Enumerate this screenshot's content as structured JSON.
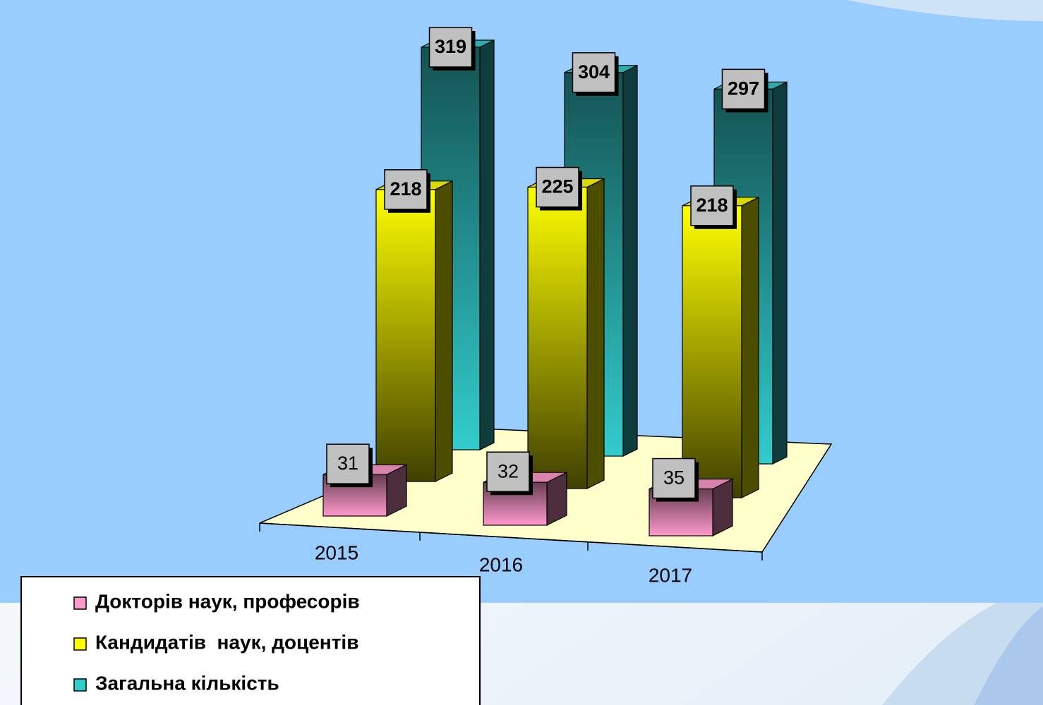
{
  "chart_data": {
    "type": "bar3d",
    "categories": [
      "2015",
      "2016",
      "2017"
    ],
    "series": [
      {
        "name": "Докторів наук, професорів",
        "color": "#ff99cc",
        "values": [
          31,
          32,
          35
        ]
      },
      {
        "name": "Кандидатів  наук, доцентів",
        "color": "#ffff00",
        "values": [
          218,
          225,
          218
        ]
      },
      {
        "name": "Загальна кількість",
        "color": "#33cccc",
        "values": [
          319,
          304,
          297
        ]
      }
    ],
    "ylim": [
      0,
      350
    ],
    "legend": "bottom-left"
  }
}
